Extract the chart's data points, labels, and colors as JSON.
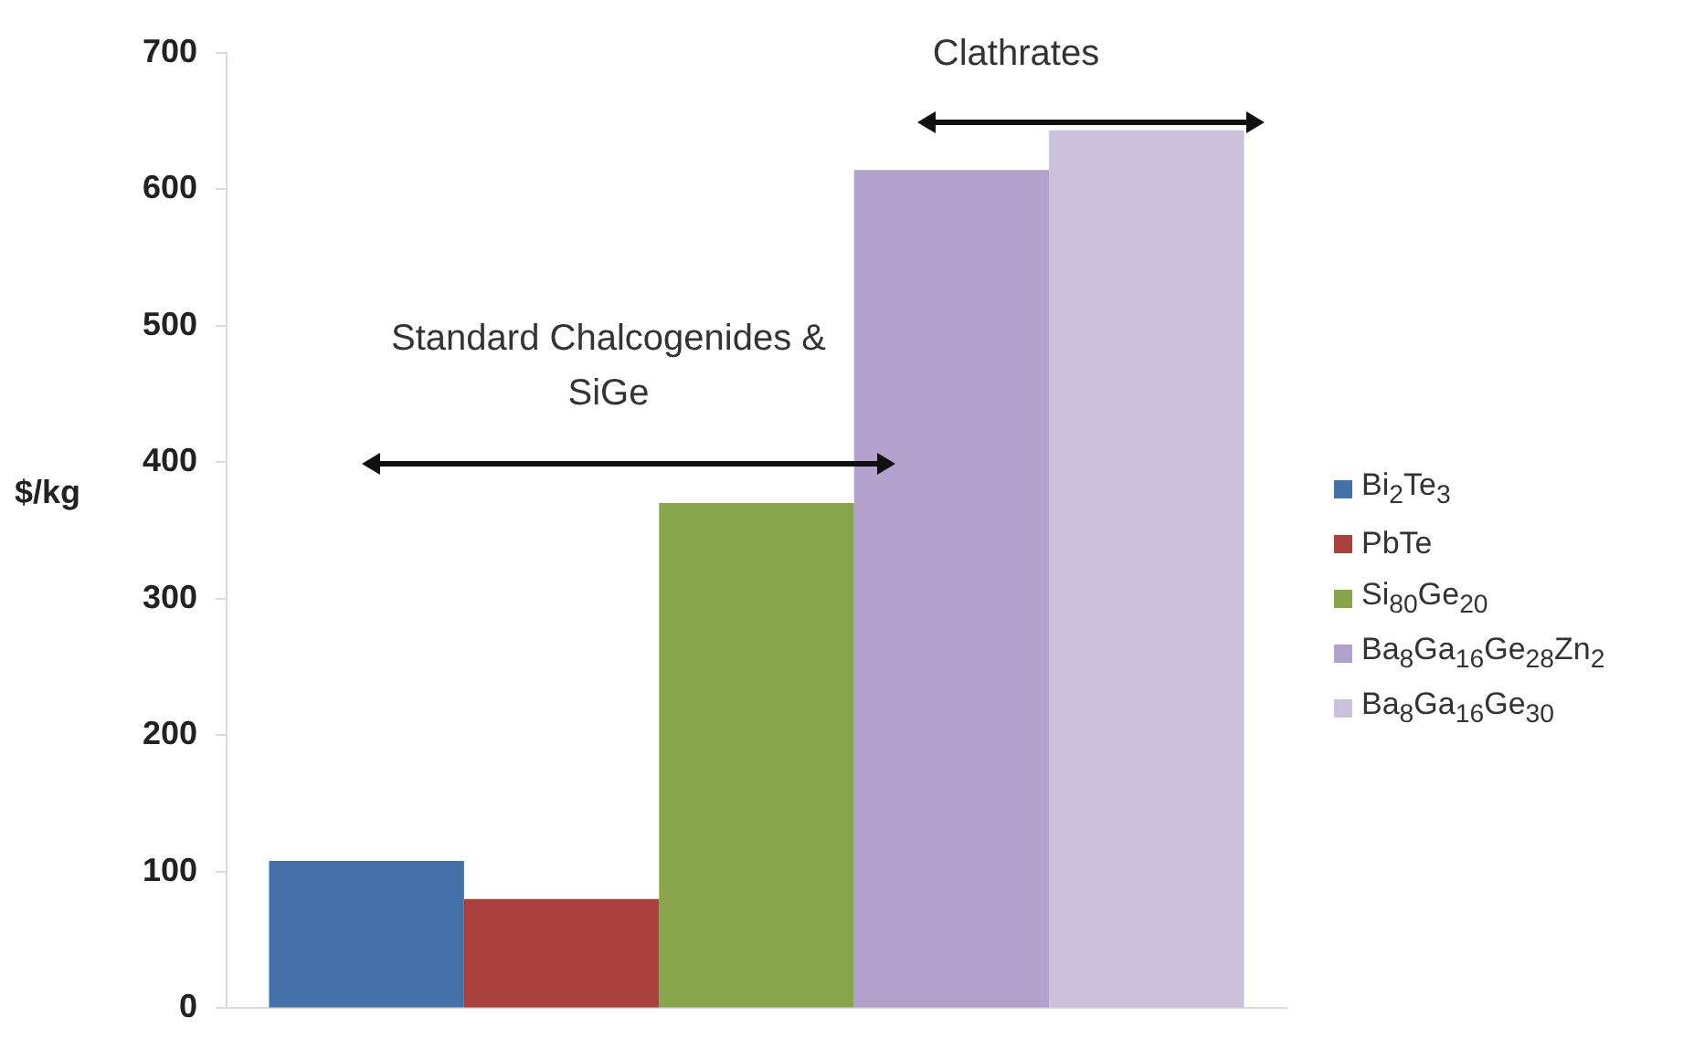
{
  "chart_data": {
    "type": "bar",
    "ylabel": "$/kg",
    "categories": [
      null
    ],
    "series": [
      {
        "name": "Bi$_{2}$Te$_{3}$",
        "color": "#4472a8",
        "values": [
          108
        ]
      },
      {
        "name": "PbTe",
        "color": "#a9413f",
        "values": [
          80
        ]
      },
      {
        "name": "Si$_{80}$Ge$_{20}$",
        "color": "#88a54b",
        "values": [
          370
        ]
      },
      {
        "name": "Ba$_{8}$Ga$_{16}$Ge$_{28}$Zn$_{2}$",
        "color": "#b2a2cb",
        "values": [
          614
        ]
      },
      {
        "name": "Ba$_{8}$Ga$_{16}$Ge$_{30}$",
        "color": "#cbc1dc",
        "values": [
          643
        ]
      }
    ],
    "ylim": [
      0,
      700
    ],
    "yticks": [
      0,
      100,
      200,
      300,
      400,
      500,
      600,
      700
    ],
    "annotations": [
      "Standard Chalcogenides & SiGe",
      "Clathrates"
    ],
    "grid": false,
    "legend": "right"
  }
}
